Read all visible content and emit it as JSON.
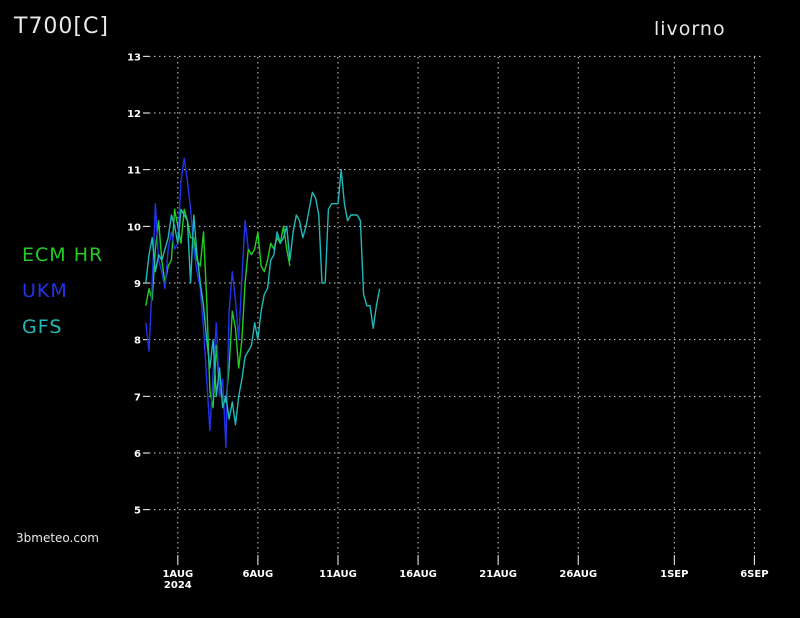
{
  "header": {
    "title": "T700[C]",
    "location": "livorno"
  },
  "watermark": "3bmeteo.com",
  "chart_data": {
    "type": "line",
    "ylim": [
      4.2,
      13.2
    ],
    "yticks": [
      5,
      6,
      7,
      8,
      9,
      10,
      11,
      12,
      13
    ],
    "xlim": [
      -1.8,
      36.6
    ],
    "xticks": [
      {
        "x": 0,
        "label": "1AUG",
        "sub": "2024"
      },
      {
        "x": 5,
        "label": "6AUG"
      },
      {
        "x": 10,
        "label": "11AUG"
      },
      {
        "x": 15,
        "label": "16AUG"
      },
      {
        "x": 20,
        "label": "21AUG"
      },
      {
        "x": 25,
        "label": "26AUG"
      },
      {
        "x": 31,
        "label": "1SEP"
      },
      {
        "x": 36,
        "label": "6SEP"
      }
    ],
    "grid": true,
    "legend_position": "left",
    "series": [
      {
        "name": "ECM HR",
        "color": "#22cc22",
        "points": [
          [
            -2,
            8.6
          ],
          [
            -1.8,
            8.9
          ],
          [
            -1.6,
            8.7
          ],
          [
            -1.4,
            9.6
          ],
          [
            -1.2,
            10.1
          ],
          [
            -1.0,
            9.4
          ],
          [
            -0.8,
            9.0
          ],
          [
            -0.6,
            9.3
          ],
          [
            -0.4,
            9.4
          ],
          [
            -0.2,
            10.3
          ],
          [
            0,
            10.0
          ],
          [
            0.2,
            9.7
          ],
          [
            0.4,
            10.3
          ],
          [
            0.6,
            10.1
          ],
          [
            0.8,
            9.8
          ],
          [
            1.0,
            9.8
          ],
          [
            1.2,
            9.4
          ],
          [
            1.4,
            9.3
          ],
          [
            1.6,
            9.9
          ],
          [
            1.8,
            8.7
          ],
          [
            2.0,
            7.1
          ],
          [
            2.2,
            6.8
          ],
          [
            2.4,
            7.9
          ],
          [
            2.6,
            7.1
          ],
          [
            2.8,
            7.0
          ],
          [
            3.0,
            6.9
          ],
          [
            3.2,
            7.5
          ],
          [
            3.4,
            8.5
          ],
          [
            3.6,
            8.2
          ],
          [
            3.8,
            7.5
          ],
          [
            4.0,
            8.0
          ],
          [
            4.2,
            9.0
          ],
          [
            4.4,
            9.6
          ],
          [
            4.6,
            9.5
          ],
          [
            4.8,
            9.6
          ],
          [
            5.0,
            9.9
          ],
          [
            5.2,
            9.3
          ],
          [
            5.4,
            9.2
          ],
          [
            5.6,
            9.4
          ],
          [
            5.8,
            9.7
          ],
          [
            6.0,
            9.6
          ],
          [
            6.2,
            9.8
          ],
          [
            6.4,
            9.7
          ],
          [
            6.6,
            10.0
          ],
          [
            6.8,
            9.6
          ],
          [
            7.0,
            9.3
          ]
        ]
      },
      {
        "name": "UKM",
        "color": "#2233ee",
        "points": [
          [
            -2,
            8.3
          ],
          [
            -1.8,
            7.8
          ],
          [
            -1.6,
            9.0
          ],
          [
            -1.4,
            10.4
          ],
          [
            -1.2,
            9.4
          ],
          [
            -1.0,
            9.2
          ],
          [
            -0.8,
            8.9
          ],
          [
            -0.6,
            9.6
          ],
          [
            -0.4,
            9.9
          ],
          [
            -0.2,
            9.6
          ],
          [
            0,
            9.7
          ],
          [
            0.2,
            10.8
          ],
          [
            0.4,
            11.2
          ],
          [
            0.6,
            10.8
          ],
          [
            0.8,
            10.3
          ],
          [
            1.0,
            9.6
          ],
          [
            1.2,
            9.2
          ],
          [
            1.4,
            8.9
          ],
          [
            1.6,
            8.2
          ],
          [
            1.8,
            7.3
          ],
          [
            2.0,
            6.4
          ],
          [
            2.2,
            7.4
          ],
          [
            2.4,
            8.3
          ],
          [
            2.6,
            7.0
          ],
          [
            2.8,
            7.3
          ],
          [
            3.0,
            6.1
          ],
          [
            3.2,
            8.5
          ],
          [
            3.4,
            9.2
          ],
          [
            3.6,
            8.7
          ],
          [
            3.8,
            8.0
          ],
          [
            4.0,
            9.1
          ],
          [
            4.2,
            10.1
          ],
          [
            4.4,
            9.6
          ]
        ]
      },
      {
        "name": "GFS",
        "color": "#22b8b8",
        "points": [
          [
            -2,
            9.0
          ],
          [
            -1.8,
            9.5
          ],
          [
            -1.6,
            9.8
          ],
          [
            -1.4,
            9.2
          ],
          [
            -1.2,
            9.5
          ],
          [
            -1.0,
            9.4
          ],
          [
            -0.8,
            9.6
          ],
          [
            -0.6,
            9.8
          ],
          [
            -0.4,
            10.2
          ],
          [
            -0.2,
            10.0
          ],
          [
            0,
            9.7
          ],
          [
            0.2,
            10.3
          ],
          [
            0.4,
            10.2
          ],
          [
            0.6,
            10.1
          ],
          [
            0.8,
            9.0
          ],
          [
            1.0,
            10.2
          ],
          [
            1.2,
            9.5
          ],
          [
            1.4,
            9.0
          ],
          [
            1.6,
            8.6
          ],
          [
            1.8,
            8.0
          ],
          [
            2.0,
            7.5
          ],
          [
            2.2,
            8.0
          ],
          [
            2.4,
            7.0
          ],
          [
            2.6,
            7.5
          ],
          [
            2.8,
            6.8
          ],
          [
            3.0,
            7.0
          ],
          [
            3.2,
            6.6
          ],
          [
            3.4,
            6.9
          ],
          [
            3.6,
            6.5
          ],
          [
            3.8,
            7.0
          ],
          [
            4.0,
            7.3
          ],
          [
            4.2,
            7.7
          ],
          [
            4.4,
            7.8
          ],
          [
            4.6,
            7.9
          ],
          [
            4.8,
            8.3
          ],
          [
            5.0,
            8.0
          ],
          [
            5.2,
            8.5
          ],
          [
            5.4,
            8.8
          ],
          [
            5.6,
            8.9
          ],
          [
            5.8,
            9.4
          ],
          [
            6.0,
            9.5
          ],
          [
            6.2,
            9.9
          ],
          [
            6.4,
            9.7
          ],
          [
            6.6,
            9.8
          ],
          [
            6.8,
            10.0
          ],
          [
            7.0,
            9.4
          ],
          [
            7.2,
            9.9
          ],
          [
            7.4,
            10.2
          ],
          [
            7.6,
            10.1
          ],
          [
            7.8,
            9.8
          ],
          [
            8.0,
            10.0
          ],
          [
            8.2,
            10.3
          ],
          [
            8.4,
            10.6
          ],
          [
            8.6,
            10.5
          ],
          [
            8.8,
            10.2
          ],
          [
            9.0,
            9.0
          ],
          [
            9.2,
            9.0
          ],
          [
            9.4,
            10.3
          ],
          [
            9.6,
            10.4
          ],
          [
            9.8,
            10.4
          ],
          [
            10.0,
            10.4
          ],
          [
            10.2,
            11.0
          ],
          [
            10.4,
            10.4
          ],
          [
            10.6,
            10.1
          ],
          [
            10.8,
            10.2
          ],
          [
            11.0,
            10.2
          ],
          [
            11.2,
            10.2
          ],
          [
            11.4,
            10.1
          ],
          [
            11.6,
            8.8
          ],
          [
            11.8,
            8.6
          ],
          [
            12.0,
            8.6
          ],
          [
            12.2,
            8.2
          ],
          [
            12.4,
            8.6
          ],
          [
            12.6,
            8.9
          ]
        ]
      }
    ]
  }
}
